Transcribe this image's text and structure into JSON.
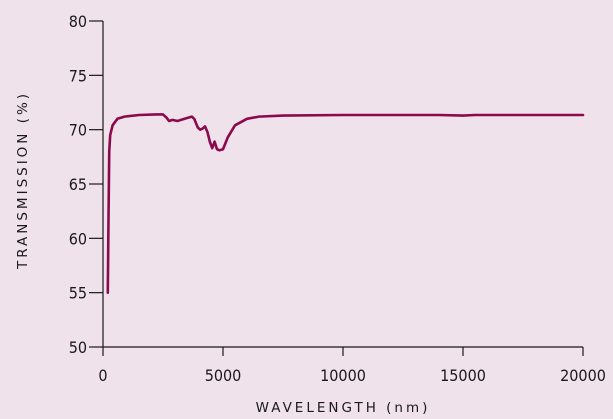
{
  "chart_data": {
    "type": "line",
    "title": "",
    "xlabel": "WAVELENGTH (nm)",
    "ylabel": "TRANSMISSION (%)",
    "xlim": [
      0,
      20000
    ],
    "ylim": [
      50,
      80
    ],
    "x_ticks": [
      0,
      5000,
      10000,
      15000,
      20000
    ],
    "y_ticks": [
      50,
      55,
      60,
      65,
      70,
      75,
      80
    ],
    "x_tick_labels": [
      "0",
      "5000",
      "10000",
      "15000",
      "20000"
    ],
    "y_tick_labels": [
      "50",
      "55",
      "60",
      "65",
      "70",
      "75",
      "80"
    ],
    "grid": false,
    "series": [
      {
        "color": "#8b0a4e",
        "points": [
          [
            200,
            55.0
          ],
          [
            230,
            62.0
          ],
          [
            260,
            68.0
          ],
          [
            300,
            69.5
          ],
          [
            400,
            70.4
          ],
          [
            600,
            71.0
          ],
          [
            900,
            71.2
          ],
          [
            1500,
            71.35
          ],
          [
            2200,
            71.4
          ],
          [
            2500,
            71.4
          ],
          [
            2650,
            71.1
          ],
          [
            2750,
            70.8
          ],
          [
            2900,
            70.9
          ],
          [
            3100,
            70.8
          ],
          [
            3400,
            71.0
          ],
          [
            3700,
            71.2
          ],
          [
            3800,
            71.0
          ],
          [
            3950,
            70.2
          ],
          [
            4050,
            70.0
          ],
          [
            4150,
            70.1
          ],
          [
            4250,
            70.3
          ],
          [
            4350,
            69.8
          ],
          [
            4450,
            68.9
          ],
          [
            4550,
            68.3
          ],
          [
            4650,
            68.9
          ],
          [
            4750,
            68.2
          ],
          [
            4850,
            68.1
          ],
          [
            5000,
            68.2
          ],
          [
            5200,
            69.3
          ],
          [
            5500,
            70.4
          ],
          [
            6000,
            71.0
          ],
          [
            6500,
            71.2
          ],
          [
            7500,
            71.3
          ],
          [
            10000,
            71.35
          ],
          [
            14000,
            71.35
          ],
          [
            15000,
            71.3
          ],
          [
            15500,
            71.35
          ],
          [
            17000,
            71.35
          ],
          [
            20000,
            71.35
          ]
        ]
      }
    ]
  }
}
